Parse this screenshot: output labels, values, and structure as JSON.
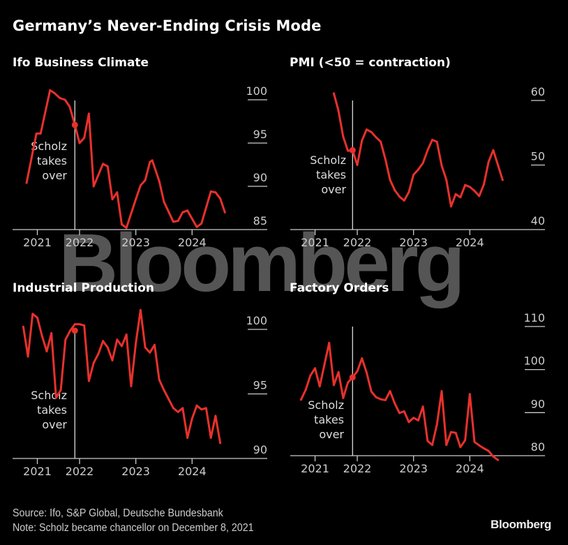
{
  "title": "Germany’s Never-Ending Crisis Mode",
  "watermark": "Bloomberg",
  "footer": {
    "source": "Source: Ifo, S&P Global, Deutsche Bundesbank",
    "note": "Note: Scholz became chancellor on December 8, 2021",
    "brand": "Bloomberg"
  },
  "colors": {
    "line": "#e8312c",
    "axis": "#cccccc",
    "background": "#000000",
    "watermark": "#555555"
  },
  "chart_data": [
    {
      "type": "line",
      "title": "Ifo Business Climate",
      "x_unit": "months since Jan 2022",
      "xlim": [
        -12,
        39
      ],
      "x_ticks": [
        {
          "x": -9,
          "label": "2021"
        },
        {
          "x": 0,
          "label": "2022"
        },
        {
          "x": 12,
          "label": "2023"
        },
        {
          "x": 24,
          "label": "2024"
        }
      ],
      "ylim": [
        85,
        101.5
      ],
      "y_ticks": [
        100,
        95,
        90,
        85
      ],
      "annotation": {
        "x": -1,
        "lines": [
          "Scholz",
          "takes",
          "over"
        ]
      },
      "marker": {
        "x": -1,
        "y": 97.1
      },
      "x": [
        -11.3,
        -9.2,
        -8.3,
        -6.3,
        -5.4,
        -4.2,
        -3.1,
        -2.1,
        -1,
        0,
        1,
        2,
        3,
        5,
        6,
        7,
        8,
        9,
        10,
        12,
        13,
        14,
        15,
        15.5,
        17,
        18,
        20,
        21,
        22,
        23,
        25,
        26,
        28,
        29,
        30,
        31
      ],
      "y": [
        90.4,
        96.1,
        96.1,
        101.1,
        100.8,
        100.2,
        100,
        99.2,
        97.1,
        95,
        95.6,
        98.4,
        90,
        92.6,
        92.3,
        88.5,
        89.3,
        85.6,
        85.2,
        88.5,
        90.1,
        90.7,
        92.8,
        93,
        90.6,
        88.2,
        85.9,
        86,
        87,
        87.2,
        85.3,
        85.7,
        89.4,
        89.3,
        88.6,
        87
      ]
    },
    {
      "type": "line",
      "title": "PMI (<50 = contraction)",
      "x_unit": "months since Jan 2022",
      "xlim": [
        -12,
        39
      ],
      "x_ticks": [
        {
          "x": -9,
          "label": "2021"
        },
        {
          "x": 0,
          "label": "2022"
        },
        {
          "x": 12,
          "label": "2023"
        },
        {
          "x": 24,
          "label": "2024"
        }
      ],
      "ylim": [
        40,
        62
      ],
      "y_ticks": [
        60,
        50,
        40
      ],
      "annotation": {
        "x": -1,
        "lines": [
          "Scholz",
          "takes",
          "over"
        ]
      },
      "marker": {
        "x": -1,
        "y": 52.3
      },
      "x": [
        -5,
        -4,
        -3,
        -2,
        -1,
        0,
        1,
        2,
        3,
        4,
        5,
        6,
        7,
        8,
        9,
        10,
        11,
        12,
        13,
        14,
        15,
        16,
        17,
        18,
        19,
        20,
        21,
        22,
        23,
        24,
        25,
        26,
        27,
        28,
        29,
        30,
        31
      ],
      "y": [
        61.1,
        58.4,
        54.4,
        52.2,
        52.3,
        50,
        53.8,
        55.5,
        55.1,
        54.3,
        53.6,
        50.9,
        47.7,
        46.1,
        45.1,
        44.5,
        45.8,
        48.5,
        49.3,
        50.3,
        52.3,
        53.9,
        53.6,
        49.9,
        47.7,
        43.6,
        45.5,
        45.0,
        46.9,
        46.6,
        46.0,
        45.2,
        47.0,
        50.5,
        52.3,
        50.0,
        47.7
      ]
    },
    {
      "type": "line",
      "title": "Industrial Production",
      "x_unit": "months since Jan 2022",
      "xlim": [
        -12,
        39
      ],
      "x_ticks": [
        {
          "x": -9,
          "label": "2021"
        },
        {
          "x": 0,
          "label": "2022"
        },
        {
          "x": 12,
          "label": "2023"
        },
        {
          "x": 24,
          "label": "2024"
        }
      ],
      "ylim": [
        90,
        102
      ],
      "y_ticks": [
        100,
        95,
        90
      ],
      "annotation": {
        "x": -1,
        "lines": [
          "Scholz",
          "takes",
          "over"
        ]
      },
      "marker": {
        "x": -1,
        "y": 99.9
      },
      "x": [
        -12,
        -11,
        -10,
        -9,
        -8,
        -7,
        -6,
        -5,
        -4,
        -3,
        -2,
        -1,
        0,
        1,
        2,
        3,
        4,
        5,
        6,
        7,
        8,
        9,
        10,
        11,
        12,
        13,
        14,
        15,
        16,
        17,
        18,
        19,
        20,
        21,
        22,
        23,
        24,
        25,
        26,
        27,
        28,
        29,
        30
      ],
      "y": [
        100.2,
        97.9,
        101.2,
        100.9,
        99.5,
        98.3,
        99.7,
        94.7,
        95.3,
        99.2,
        99.9,
        100.4,
        100.4,
        100.3,
        96.0,
        97.4,
        98.1,
        99.1,
        98.6,
        97.6,
        99.2,
        98.7,
        99.6,
        95.6,
        98.9,
        101.5,
        98.6,
        98.2,
        98.8,
        96.1,
        95.3,
        94.6,
        93.9,
        93.6,
        93.9,
        91.6,
        93.1,
        94.1,
        93.8,
        93.9,
        91.6,
        93.3,
        91.2
      ]
    },
    {
      "type": "line",
      "title": "Factory Orders",
      "x_unit": "months since Jan 2022",
      "xlim": [
        -12,
        39
      ],
      "x_ticks": [
        {
          "x": -9,
          "label": "2021"
        },
        {
          "x": 0,
          "label": "2022"
        },
        {
          "x": 12,
          "label": "2023"
        },
        {
          "x": 24,
          "label": "2024"
        }
      ],
      "ylim": [
        80,
        112
      ],
      "y_ticks": [
        110,
        100,
        90,
        80
      ],
      "annotation": {
        "x": -1,
        "lines": [
          "Scholz",
          "takes",
          "over"
        ]
      },
      "marker": {
        "x": -1,
        "y": 98.2
      },
      "x": [
        -12,
        -11,
        -10,
        -9,
        -8,
        -7,
        -6,
        -5,
        -4,
        -3,
        -2,
        -1,
        0,
        1,
        2,
        3,
        4,
        5,
        6,
        7,
        8,
        9,
        10,
        11,
        12,
        13,
        14,
        15,
        16,
        17,
        18,
        19,
        20,
        21,
        22,
        23,
        24,
        25,
        26,
        27,
        28,
        29,
        30
      ],
      "y": [
        93.0,
        95.3,
        98.6,
        100.3,
        96.1,
        101.2,
        106.2,
        96.4,
        99.4,
        93.4,
        97.0,
        98.2,
        99.6,
        102.6,
        99.3,
        94.9,
        93.6,
        93.1,
        92.9,
        95.0,
        92.1,
        89.9,
        90.3,
        87.8,
        88.8,
        88.2,
        91.4,
        83.4,
        82.5,
        87.3,
        95.0,
        82.5,
        85.5,
        85.3,
        82.0,
        83.6,
        94.3,
        83.2,
        82.4,
        81.7,
        81.1,
        79.8,
        79.0
      ]
    }
  ]
}
